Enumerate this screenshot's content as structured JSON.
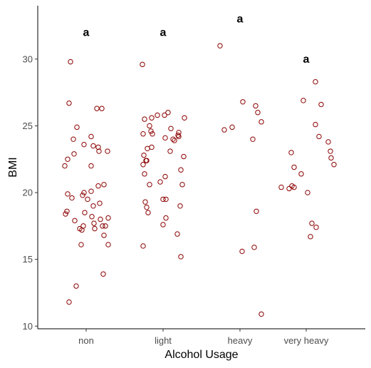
{
  "chart_data": {
    "type": "scatter",
    "title": "",
    "xlabel": "Alcohol Usage",
    "ylabel": "BMI",
    "categories": [
      "non",
      "light",
      "heavy",
      "very heavy"
    ],
    "ylim": [
      9.8,
      34
    ],
    "yticks": [
      10,
      15,
      20,
      25,
      30
    ],
    "grid": false,
    "point_color": "#8b0000",
    "letters": [
      {
        "category": "non",
        "text": "a",
        "y": 32.0
      },
      {
        "category": "light",
        "text": "a",
        "y": 32.0
      },
      {
        "category": "heavy",
        "text": "a",
        "y": 33.0
      },
      {
        "category": "very heavy",
        "text": "a",
        "y": 30.0
      }
    ],
    "points": [
      {
        "category": "non",
        "jitter": -0.22,
        "y": 29.8
      },
      {
        "category": "non",
        "jitter": -0.24,
        "y": 26.7
      },
      {
        "category": "non",
        "jitter": 0.15,
        "y": 26.3
      },
      {
        "category": "non",
        "jitter": 0.22,
        "y": 26.3
      },
      {
        "category": "non",
        "jitter": -0.13,
        "y": 24.9
      },
      {
        "category": "non",
        "jitter": 0.07,
        "y": 24.2
      },
      {
        "category": "non",
        "jitter": -0.18,
        "y": 24.0
      },
      {
        "category": "non",
        "jitter": -0.03,
        "y": 23.6
      },
      {
        "category": "non",
        "jitter": 0.1,
        "y": 23.5
      },
      {
        "category": "non",
        "jitter": 0.17,
        "y": 23.4
      },
      {
        "category": "non",
        "jitter": 0.3,
        "y": 23.1
      },
      {
        "category": "non",
        "jitter": 0.18,
        "y": 23.1
      },
      {
        "category": "non",
        "jitter": -0.17,
        "y": 22.9
      },
      {
        "category": "non",
        "jitter": -0.26,
        "y": 22.5
      },
      {
        "category": "non",
        "jitter": -0.3,
        "y": 22.0
      },
      {
        "category": "non",
        "jitter": 0.07,
        "y": 22.0
      },
      {
        "category": "non",
        "jitter": 0.25,
        "y": 20.6
      },
      {
        "category": "non",
        "jitter": 0.17,
        "y": 20.5
      },
      {
        "category": "non",
        "jitter": 0.07,
        "y": 20.1
      },
      {
        "category": "non",
        "jitter": -0.03,
        "y": 20.0
      },
      {
        "category": "non",
        "jitter": -0.26,
        "y": 19.9
      },
      {
        "category": "non",
        "jitter": -0.05,
        "y": 19.8
      },
      {
        "category": "non",
        "jitter": -0.2,
        "y": 19.6
      },
      {
        "category": "non",
        "jitter": 0.02,
        "y": 19.5
      },
      {
        "category": "non",
        "jitter": 0.19,
        "y": 19.2
      },
      {
        "category": "non",
        "jitter": 0.1,
        "y": 19.0
      },
      {
        "category": "non",
        "jitter": -0.27,
        "y": 18.6
      },
      {
        "category": "non",
        "jitter": -0.29,
        "y": 18.4
      },
      {
        "category": "non",
        "jitter": -0.02,
        "y": 18.5
      },
      {
        "category": "non",
        "jitter": 0.08,
        "y": 18.2
      },
      {
        "category": "non",
        "jitter": 0.31,
        "y": 18.1
      },
      {
        "category": "non",
        "jitter": 0.2,
        "y": 18.0
      },
      {
        "category": "non",
        "jitter": -0.16,
        "y": 17.9
      },
      {
        "category": "non",
        "jitter": 0.11,
        "y": 17.7
      },
      {
        "category": "non",
        "jitter": 0.23,
        "y": 17.5
      },
      {
        "category": "non",
        "jitter": 0.27,
        "y": 17.5
      },
      {
        "category": "non",
        "jitter": -0.04,
        "y": 17.5
      },
      {
        "category": "non",
        "jitter": -0.09,
        "y": 17.3
      },
      {
        "category": "non",
        "jitter": -0.06,
        "y": 17.2
      },
      {
        "category": "non",
        "jitter": 0.12,
        "y": 17.3
      },
      {
        "category": "non",
        "jitter": 0.25,
        "y": 16.8
      },
      {
        "category": "non",
        "jitter": -0.07,
        "y": 16.1
      },
      {
        "category": "non",
        "jitter": 0.31,
        "y": 16.1
      },
      {
        "category": "non",
        "jitter": 0.24,
        "y": 13.9
      },
      {
        "category": "non",
        "jitter": -0.14,
        "y": 13.0
      },
      {
        "category": "non",
        "jitter": -0.24,
        "y": 11.8
      },
      {
        "category": "light",
        "jitter": -0.29,
        "y": 29.6
      },
      {
        "category": "light",
        "jitter": 0.07,
        "y": 26.0
      },
      {
        "category": "light",
        "jitter": -0.08,
        "y": 25.8
      },
      {
        "category": "light",
        "jitter": 0.02,
        "y": 25.8
      },
      {
        "category": "light",
        "jitter": -0.16,
        "y": 25.6
      },
      {
        "category": "light",
        "jitter": 0.3,
        "y": 25.6
      },
      {
        "category": "light",
        "jitter": -0.26,
        "y": 25.5
      },
      {
        "category": "light",
        "jitter": -0.19,
        "y": 25.0
      },
      {
        "category": "light",
        "jitter": 0.11,
        "y": 24.8
      },
      {
        "category": "light",
        "jitter": -0.17,
        "y": 24.6
      },
      {
        "category": "light",
        "jitter": 0.22,
        "y": 24.5
      },
      {
        "category": "light",
        "jitter": -0.28,
        "y": 24.4
      },
      {
        "category": "light",
        "jitter": -0.15,
        "y": 24.4
      },
      {
        "category": "light",
        "jitter": 0.21,
        "y": 24.3
      },
      {
        "category": "light",
        "jitter": 0.14,
        "y": 24.0
      },
      {
        "category": "light",
        "jitter": 0.03,
        "y": 24.1
      },
      {
        "category": "light",
        "jitter": 0.16,
        "y": 23.9
      },
      {
        "category": "light",
        "jitter": 0.22,
        "y": 24.2
      },
      {
        "category": "light",
        "jitter": -0.16,
        "y": 23.4
      },
      {
        "category": "light",
        "jitter": -0.22,
        "y": 23.3
      },
      {
        "category": "light",
        "jitter": 0.1,
        "y": 23.1
      },
      {
        "category": "light",
        "jitter": -0.27,
        "y": 22.8
      },
      {
        "category": "light",
        "jitter": 0.29,
        "y": 22.7
      },
      {
        "category": "light",
        "jitter": -0.24,
        "y": 22.4
      },
      {
        "category": "light",
        "jitter": -0.23,
        "y": 22.4
      },
      {
        "category": "light",
        "jitter": -0.28,
        "y": 22.1
      },
      {
        "category": "light",
        "jitter": 0.25,
        "y": 21.7
      },
      {
        "category": "light",
        "jitter": -0.26,
        "y": 21.4
      },
      {
        "category": "light",
        "jitter": 0.03,
        "y": 21.2
      },
      {
        "category": "light",
        "jitter": -0.04,
        "y": 20.8
      },
      {
        "category": "light",
        "jitter": -0.19,
        "y": 20.6
      },
      {
        "category": "light",
        "jitter": 0.27,
        "y": 20.6
      },
      {
        "category": "light",
        "jitter": 0.0,
        "y": 19.5
      },
      {
        "category": "light",
        "jitter": 0.04,
        "y": 19.5
      },
      {
        "category": "light",
        "jitter": -0.25,
        "y": 19.3
      },
      {
        "category": "light",
        "jitter": 0.24,
        "y": 19.0
      },
      {
        "category": "light",
        "jitter": -0.23,
        "y": 18.9
      },
      {
        "category": "light",
        "jitter": -0.21,
        "y": 18.5
      },
      {
        "category": "light",
        "jitter": 0.04,
        "y": 18.1
      },
      {
        "category": "light",
        "jitter": 0.0,
        "y": 17.6
      },
      {
        "category": "light",
        "jitter": 0.2,
        "y": 16.9
      },
      {
        "category": "light",
        "jitter": -0.28,
        "y": 16.0
      },
      {
        "category": "light",
        "jitter": 0.25,
        "y": 15.2
      },
      {
        "category": "heavy",
        "jitter": -0.28,
        "y": 31.0
      },
      {
        "category": "heavy",
        "jitter": 0.04,
        "y": 26.8
      },
      {
        "category": "heavy",
        "jitter": 0.22,
        "y": 26.5
      },
      {
        "category": "heavy",
        "jitter": 0.25,
        "y": 26.0
      },
      {
        "category": "heavy",
        "jitter": 0.3,
        "y": 25.3
      },
      {
        "category": "heavy",
        "jitter": -0.11,
        "y": 24.9
      },
      {
        "category": "heavy",
        "jitter": -0.22,
        "y": 24.7
      },
      {
        "category": "heavy",
        "jitter": 0.18,
        "y": 24.0
      },
      {
        "category": "heavy",
        "jitter": 0.23,
        "y": 18.6
      },
      {
        "category": "heavy",
        "jitter": 0.2,
        "y": 15.9
      },
      {
        "category": "heavy",
        "jitter": 0.03,
        "y": 15.6
      },
      {
        "category": "heavy",
        "jitter": 0.3,
        "y": 10.9
      },
      {
        "category": "very heavy",
        "jitter": 0.13,
        "y": 28.3
      },
      {
        "category": "very heavy",
        "jitter": -0.04,
        "y": 26.9
      },
      {
        "category": "very heavy",
        "jitter": 0.21,
        "y": 26.6
      },
      {
        "category": "very heavy",
        "jitter": 0.13,
        "y": 25.1
      },
      {
        "category": "very heavy",
        "jitter": 0.18,
        "y": 24.2
      },
      {
        "category": "very heavy",
        "jitter": 0.31,
        "y": 23.8
      },
      {
        "category": "very heavy",
        "jitter": 0.34,
        "y": 23.1
      },
      {
        "category": "very heavy",
        "jitter": -0.21,
        "y": 23.0
      },
      {
        "category": "very heavy",
        "jitter": 0.35,
        "y": 22.6
      },
      {
        "category": "very heavy",
        "jitter": 0.39,
        "y": 22.1
      },
      {
        "category": "very heavy",
        "jitter": -0.17,
        "y": 21.9
      },
      {
        "category": "very heavy",
        "jitter": -0.07,
        "y": 21.4
      },
      {
        "category": "very heavy",
        "jitter": -0.2,
        "y": 20.5
      },
      {
        "category": "very heavy",
        "jitter": -0.17,
        "y": 20.4
      },
      {
        "category": "very heavy",
        "jitter": -0.35,
        "y": 20.4
      },
      {
        "category": "very heavy",
        "jitter": -0.24,
        "y": 20.3
      },
      {
        "category": "very heavy",
        "jitter": 0.02,
        "y": 20.0
      },
      {
        "category": "very heavy",
        "jitter": 0.08,
        "y": 17.7
      },
      {
        "category": "very heavy",
        "jitter": 0.14,
        "y": 17.4
      },
      {
        "category": "very heavy",
        "jitter": 0.06,
        "y": 16.7
      }
    ]
  }
}
